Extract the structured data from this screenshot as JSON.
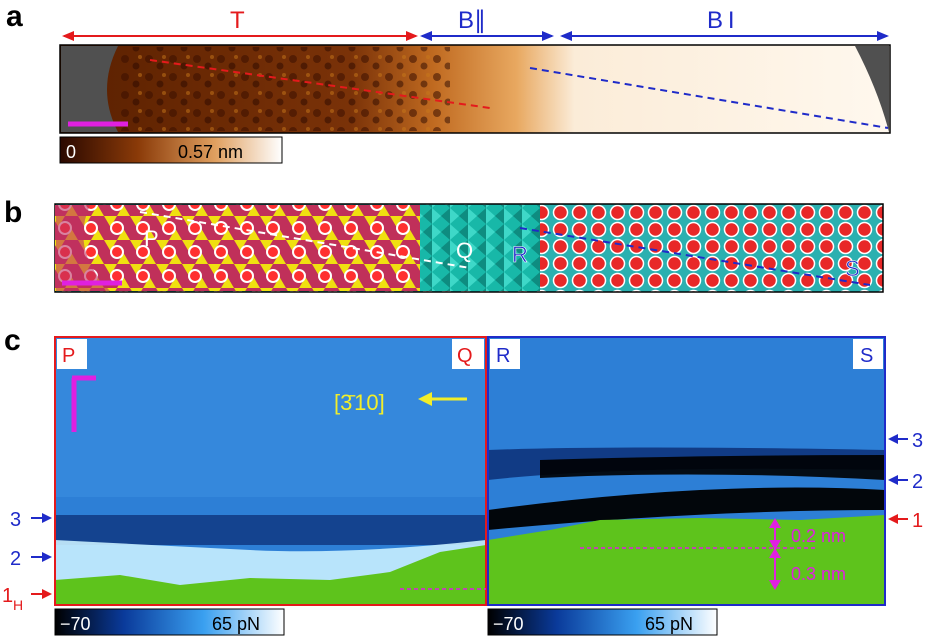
{
  "panels": {
    "a": {
      "label": "a",
      "region_T": "T",
      "region_BII": "B∥",
      "region_BI": "B I",
      "colorbar": {
        "min": "0",
        "max": "0.57 nm"
      }
    },
    "b": {
      "label": "b",
      "markers": [
        "P",
        "Q",
        "R",
        "S"
      ]
    },
    "c": {
      "label": "c",
      "corner_left": [
        "P",
        "Q"
      ],
      "corner_right": [
        "R",
        "S"
      ],
      "direction": "[3̄ 10]",
      "left_levels": [
        "3",
        "2",
        "1"
      ],
      "left_level_sub": "H",
      "right_levels": [
        "3",
        "2",
        "1"
      ],
      "heights": [
        "0.2 nm",
        "0.3 nm"
      ],
      "colorbar": {
        "min": "−70",
        "max": "65 pN"
      }
    }
  },
  "colors": {
    "red": "#e41a1c",
    "blue": "#1f2bc9",
    "magenta": "#e020e0",
    "yellow": "#f2ee2a",
    "green": "#5ec31c"
  }
}
